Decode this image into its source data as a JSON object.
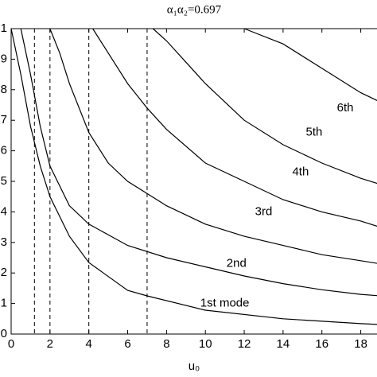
{
  "chart_data": {
    "type": "line",
    "title": "α₁α₂=0.697",
    "x_label": "u₀",
    "xlim": [
      0,
      19
    ],
    "ylim": [
      0,
      1
    ],
    "xticks": [
      0,
      2,
      4,
      6,
      8,
      10,
      12,
      14,
      16,
      18
    ],
    "yticks": [
      0,
      {
        "value": 0.1,
        "label": "1"
      },
      {
        "value": 0.2,
        "label": "2"
      },
      {
        "value": 0.3,
        "label": "3"
      },
      {
        "value": 0.4,
        "label": "4"
      },
      {
        "value": 0.5,
        "label": "5"
      },
      {
        "value": 0.6,
        "label": "6"
      },
      {
        "value": 0.7,
        "label": "7"
      },
      {
        "value": 0.8,
        "label": "8"
      },
      {
        "value": 0.9,
        "label": "9"
      },
      1
    ],
    "cutoffs": [
      1.2,
      2,
      4,
      7
    ],
    "series": [
      {
        "name": "1st mode",
        "color": "#000000",
        "x": [
          0,
          0.5,
          1,
          1.5,
          2,
          3,
          4,
          6,
          7,
          10,
          14,
          18,
          19
        ],
        "values": [
          1,
          0.85,
          0.68,
          0.55,
          0.45,
          0.32,
          0.234,
          0.143,
          0.125,
          0.078,
          0.05,
          0.034,
          0.031
        ]
      },
      {
        "name": "2nd",
        "color": "#000000",
        "x": [
          0.5,
          1,
          1.5,
          2,
          3,
          4,
          6,
          8,
          10,
          12,
          14,
          16,
          18,
          19
        ],
        "values": [
          1,
          0.85,
          0.68,
          0.55,
          0.42,
          0.36,
          0.29,
          0.25,
          0.22,
          0.19,
          0.165,
          0.145,
          0.13,
          0.125
        ]
      },
      {
        "name": "3rd",
        "color": "#000000",
        "x": [
          2,
          2.5,
          3,
          4,
          5,
          6,
          8,
          10,
          12,
          14,
          16,
          18,
          19
        ],
        "values": [
          1,
          0.92,
          0.82,
          0.66,
          0.56,
          0.5,
          0.42,
          0.36,
          0.32,
          0.29,
          0.26,
          0.24,
          0.23
        ]
      },
      {
        "name": "4th",
        "color": "#000000",
        "x": [
          4.2,
          5,
          6,
          7,
          8,
          10,
          12,
          14,
          16,
          18,
          19
        ],
        "values": [
          1,
          0.92,
          0.82,
          0.74,
          0.67,
          0.56,
          0.5,
          0.44,
          0.4,
          0.37,
          0.35
        ]
      },
      {
        "name": "5th",
        "color": "#000000",
        "x": [
          7.3,
          8,
          9,
          10,
          12,
          14,
          16,
          18,
          19
        ],
        "values": [
          1,
          0.96,
          0.89,
          0.82,
          0.7,
          0.62,
          0.56,
          0.51,
          0.49
        ]
      },
      {
        "name": "6th",
        "color": "#000000",
        "x": [
          12,
          14,
          16,
          18,
          19
        ],
        "values": [
          1,
          0.95,
          0.87,
          0.79,
          0.76
        ]
      }
    ]
  }
}
